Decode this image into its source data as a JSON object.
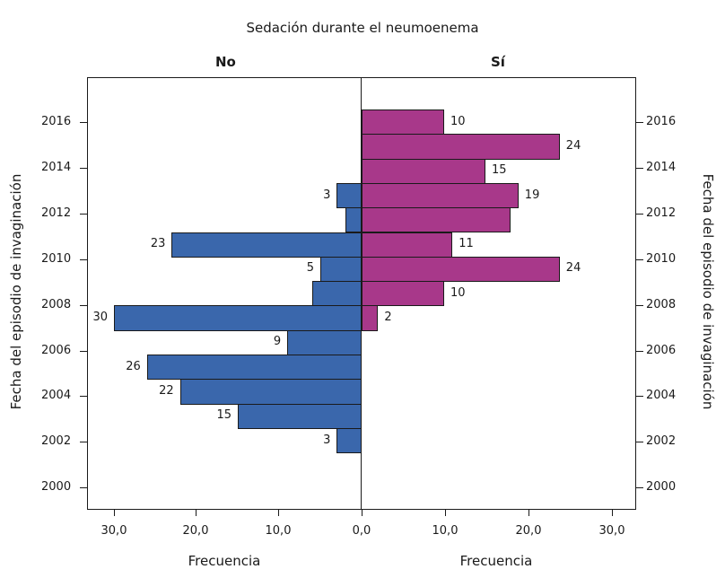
{
  "chart_data": {
    "type": "bar",
    "orientation": "horizontal",
    "layout": "population-pyramid",
    "title": "Sedación durante el neumoenema",
    "panels": [
      "No",
      "Sí"
    ],
    "xlabel": "Frecuencia",
    "ylabel": "Fecha del episodio de invaginación",
    "xlim": [
      0,
      33
    ],
    "x_ticks": [
      "30,0",
      "20,0",
      "10,0",
      "0,0",
      "10,0",
      "20,0",
      "30,0"
    ],
    "y_ticks": [
      "2016",
      "2014",
      "2012",
      "2010",
      "2008",
      "2006",
      "2004",
      "2002",
      "2000"
    ],
    "bin_labels_approx_year": [
      2016.5,
      2015.5,
      2014.4,
      2013.3,
      2012.2,
      2011.2,
      2010.1,
      2009.0,
      2008.0,
      2006.9,
      2005.8,
      2004.7,
      2003.6,
      2002.6,
      2001.5
    ],
    "series": [
      {
        "name": "No",
        "color": "#3A67AC",
        "values": [
          0,
          0,
          0,
          3,
          2,
          23,
          5,
          6,
          30,
          9,
          26,
          22,
          15,
          3,
          0
        ],
        "labeled": [
          null,
          null,
          null,
          "3",
          null,
          "23",
          "5",
          null,
          "30",
          "9",
          "26",
          "22",
          "15",
          "3",
          null
        ]
      },
      {
        "name": "Sí",
        "color": "#A8388A",
        "values": [
          10,
          24,
          15,
          19,
          18,
          11,
          24,
          10,
          2,
          0,
          0,
          0,
          0,
          0,
          0
        ],
        "labeled": [
          "10",
          "24",
          "15",
          "19",
          null,
          "11",
          "24",
          "10",
          "2",
          null,
          null,
          null,
          null,
          null,
          null
        ]
      }
    ],
    "grid": false,
    "legend": "none"
  },
  "labels": {
    "title": "Sedación durante el neumoenema",
    "panel_no": "No",
    "panel_si": "Sí",
    "xtitle_left": "Frecuencia",
    "xtitle_right": "Frecuencia",
    "ytitle_left": "Fecha del episodio de invaginación",
    "ytitle_right": "Fecha del episodio de invaginación"
  }
}
